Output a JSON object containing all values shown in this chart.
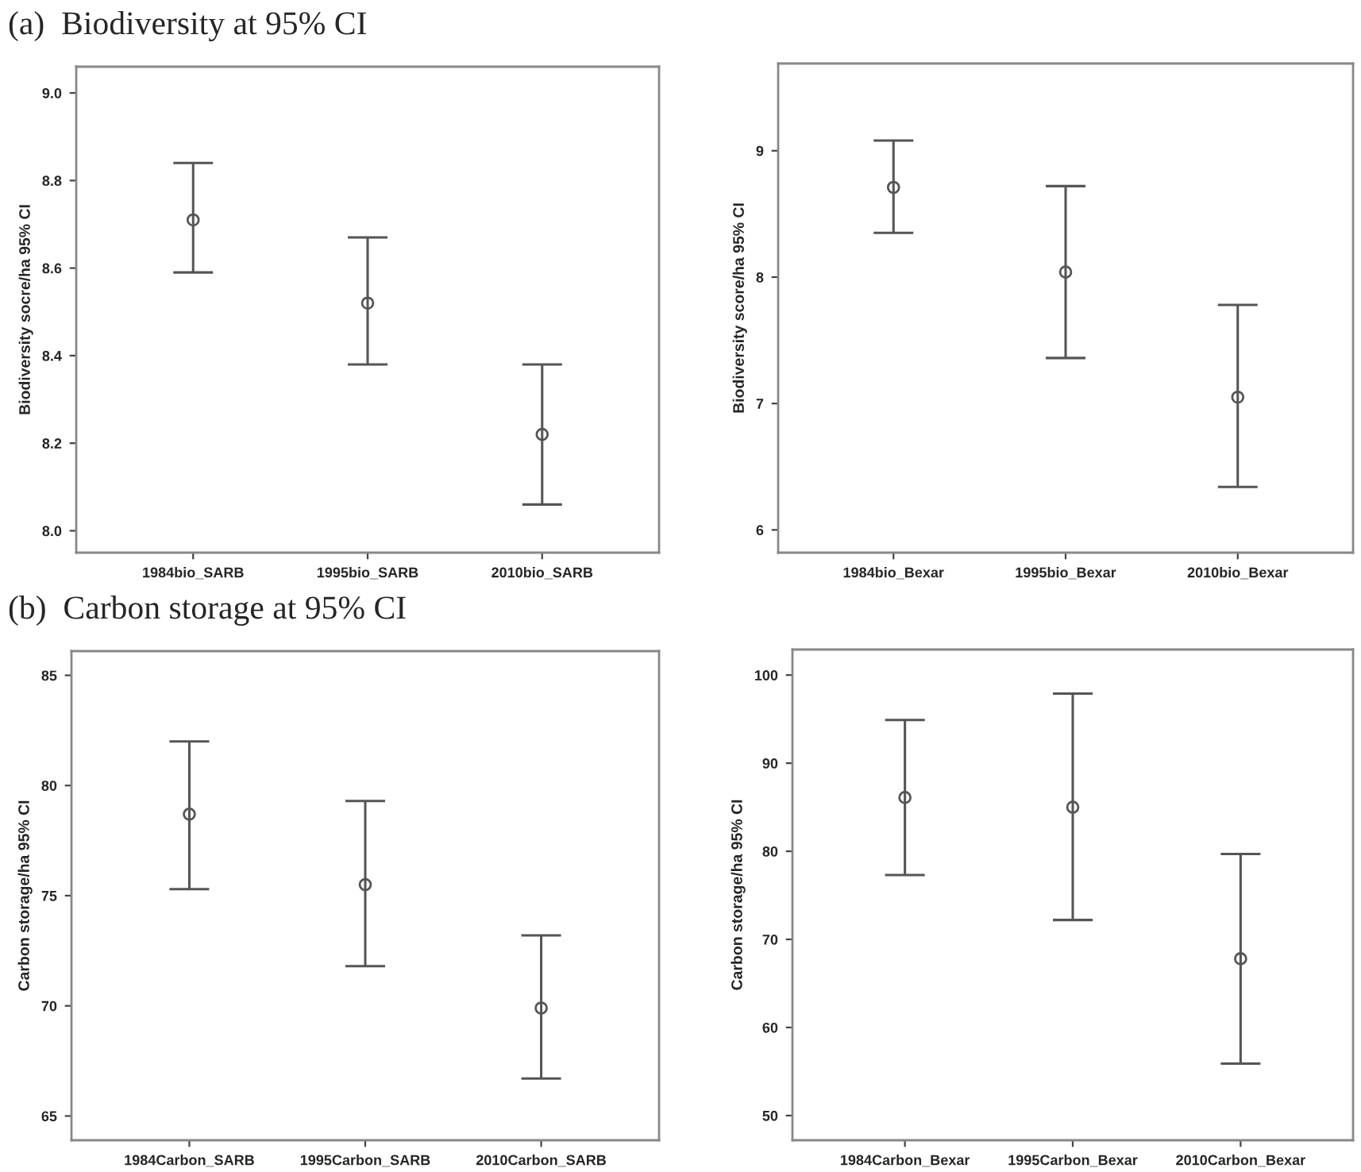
{
  "chart_data": [
    {
      "type": "scatter",
      "title": "(a)  Biodiversity at 95% CI",
      "ylabel": "Biodiversity socre/ha 95% CI",
      "categories": [
        "1984bio_SARB",
        "1995bio_SARB",
        "2010bio_SARB"
      ],
      "marker": "circle",
      "series": [
        {
          "color": "#555555",
          "values": [
            8.71,
            8.52,
            8.22
          ],
          "errors": [
            [
              8.59,
              8.84
            ],
            [
              8.38,
              8.67
            ],
            [
              8.06,
              8.38
            ]
          ]
        }
      ],
      "ylim": [
        7.95,
        9.06
      ],
      "yticks": [
        {
          "value": 8.0,
          "label": "8.0"
        },
        8.2,
        8.4,
        8.6,
        8.8,
        {
          "value": 9.0,
          "label": "9.0"
        }
      ]
    },
    {
      "type": "scatter",
      "ylabel": "Biodiversity score/ha 95% CI",
      "categories": [
        "1984bio_Bexar",
        "1995bio_Bexar",
        "2010bio_Bexar"
      ],
      "marker": "circle",
      "series": [
        {
          "color": "#555555",
          "values": [
            8.71,
            8.04,
            7.05
          ],
          "errors": [
            [
              8.35,
              9.08
            ],
            [
              7.36,
              8.72
            ],
            [
              6.34,
              7.78
            ]
          ]
        }
      ],
      "ylim": [
        5.82,
        9.69
      ],
      "yticks": [
        6,
        7,
        8,
        9
      ]
    },
    {
      "type": "scatter",
      "title": "(b)  Carbon storage at 95% CI",
      "ylabel": "Carbon storage/ha 95% CI",
      "categories": [
        "1984Carbon_SARB",
        "1995Carbon_SARB",
        "2010Carbon_SARB"
      ],
      "marker": "circle",
      "series": [
        {
          "color": "#555555",
          "values": [
            78.7,
            75.5,
            69.9
          ],
          "errors": [
            [
              75.3,
              82.0
            ],
            [
              71.8,
              79.3
            ],
            [
              66.7,
              73.2
            ]
          ]
        }
      ],
      "ylim": [
        63.9,
        86.1
      ],
      "yticks": [
        65,
        70,
        75,
        80,
        85
      ]
    },
    {
      "type": "scatter",
      "ylabel": "Carbon storage/ha 95% CI",
      "categories": [
        "1984Carbon_Bexar",
        "1995Carbon_Bexar",
        "2010Carbon_Bexar"
      ],
      "marker": "circle",
      "series": [
        {
          "color": "#555555",
          "values": [
            86.1,
            85.0,
            67.8
          ],
          "errors": [
            [
              77.3,
              94.9
            ],
            [
              72.2,
              97.9
            ],
            [
              55.9,
              79.7
            ]
          ]
        }
      ],
      "ylim": [
        47.2,
        102.9
      ],
      "yticks": [
        50,
        60,
        70,
        80,
        90,
        100
      ]
    }
  ]
}
